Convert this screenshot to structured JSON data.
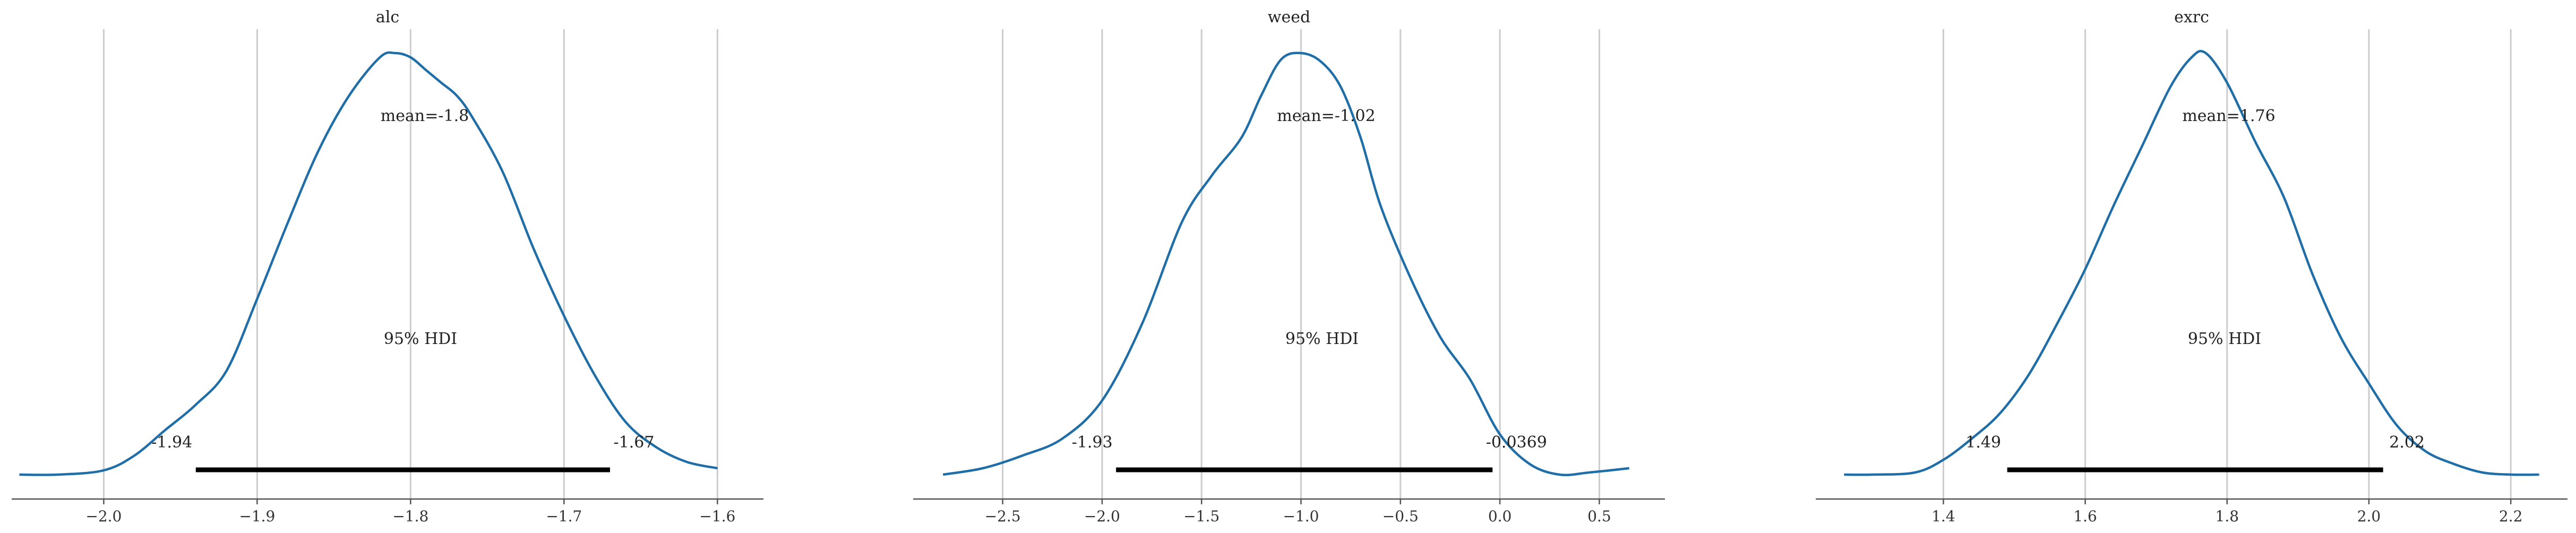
{
  "chart_data": [
    {
      "type": "area",
      "title": "alc",
      "xlim": [
        -2.06,
        -1.57
      ],
      "xticks": [
        -2.0,
        -1.9,
        -1.8,
        -1.7,
        -1.6
      ],
      "xtick_labels": [
        "−2.0",
        "−1.9",
        "−1.8",
        "−1.7",
        "−1.6"
      ],
      "grid": "x",
      "mean_label": "mean=-1.8",
      "hdi_label": "95% HDI",
      "hdi": {
        "low": -1.94,
        "high": -1.67,
        "low_label": "-1.94",
        "high_label": "-1.67"
      },
      "density": {
        "x": [
          -2.055,
          -2.03,
          -2.0,
          -1.98,
          -1.96,
          -1.94,
          -1.92,
          -1.9,
          -1.88,
          -1.86,
          -1.84,
          -1.82,
          -1.81,
          -1.8,
          -1.79,
          -1.78,
          -1.77,
          -1.76,
          -1.74,
          -1.72,
          -1.7,
          -1.68,
          -1.66,
          -1.64,
          -1.62,
          -1.6
        ],
        "y": [
          0.005,
          0.005,
          0.015,
          0.05,
          0.11,
          0.17,
          0.25,
          0.42,
          0.6,
          0.77,
          0.9,
          0.99,
          1.0,
          0.99,
          0.96,
          0.93,
          0.9,
          0.85,
          0.72,
          0.54,
          0.38,
          0.24,
          0.13,
          0.07,
          0.035,
          0.02
        ]
      }
    },
    {
      "type": "area",
      "title": "weed",
      "xlim": [
        -2.95,
        0.83
      ],
      "xticks": [
        -2.5,
        -2.0,
        -1.5,
        -1.0,
        -0.5,
        0.0,
        0.5
      ],
      "xtick_labels": [
        "−2.5",
        "−2.0",
        "−1.5",
        "−1.0",
        "−0.5",
        "0.0",
        "0.5"
      ],
      "grid": "x",
      "mean_label": "mean=-1.02",
      "hdi_label": "95% HDI",
      "hdi": {
        "low": -1.93,
        "high": -0.0369,
        "low_label": "-1.93",
        "high_label": "-0.0369"
      },
      "density": {
        "x": [
          -2.8,
          -2.6,
          -2.4,
          -2.2,
          -2.0,
          -1.8,
          -1.6,
          -1.45,
          -1.3,
          -1.2,
          -1.1,
          -1.0,
          -0.9,
          -0.8,
          -0.7,
          -0.6,
          -0.45,
          -0.3,
          -0.15,
          0.0,
          0.15,
          0.3,
          0.45,
          0.65
        ],
        "y": [
          0.005,
          0.02,
          0.05,
          0.09,
          0.18,
          0.36,
          0.6,
          0.71,
          0.8,
          0.9,
          0.985,
          1.0,
          0.98,
          0.92,
          0.8,
          0.64,
          0.47,
          0.33,
          0.23,
          0.1,
          0.03,
          0.005,
          0.01,
          0.02
        ]
      }
    },
    {
      "type": "area",
      "title": "exrc",
      "xlim": [
        1.22,
        2.28
      ],
      "xticks": [
        1.4,
        1.6,
        1.8,
        2.0,
        2.2
      ],
      "xtick_labels": [
        "1.4",
        "1.6",
        "1.8",
        "2.0",
        "2.2"
      ],
      "grid": "x",
      "mean_label": "mean=1.76",
      "hdi_label": "95% HDI",
      "hdi": {
        "low": 1.49,
        "high": 2.02,
        "low_label": "1.49",
        "high_label": "2.02"
      },
      "density": {
        "x": [
          1.26,
          1.3,
          1.36,
          1.4,
          1.44,
          1.48,
          1.52,
          1.56,
          1.6,
          1.64,
          1.68,
          1.72,
          1.75,
          1.77,
          1.8,
          1.84,
          1.88,
          1.92,
          1.96,
          2.0,
          2.04,
          2.08,
          2.12,
          2.16,
          2.2,
          2.24
        ],
        "y": [
          0.005,
          0.005,
          0.01,
          0.04,
          0.09,
          0.15,
          0.24,
          0.36,
          0.49,
          0.64,
          0.78,
          0.92,
          0.99,
          1.0,
          0.93,
          0.79,
          0.66,
          0.48,
          0.33,
          0.22,
          0.12,
          0.06,
          0.03,
          0.01,
          0.005,
          0.005
        ]
      }
    }
  ]
}
